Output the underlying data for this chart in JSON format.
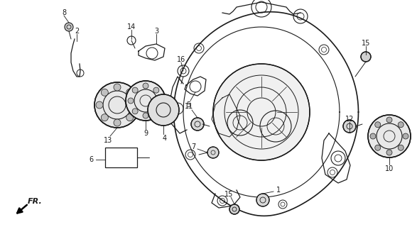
{
  "bg_color": "#ffffff",
  "line_color": "#1a1a1a",
  "fig_width": 5.87,
  "fig_height": 3.2,
  "dpi": 100
}
